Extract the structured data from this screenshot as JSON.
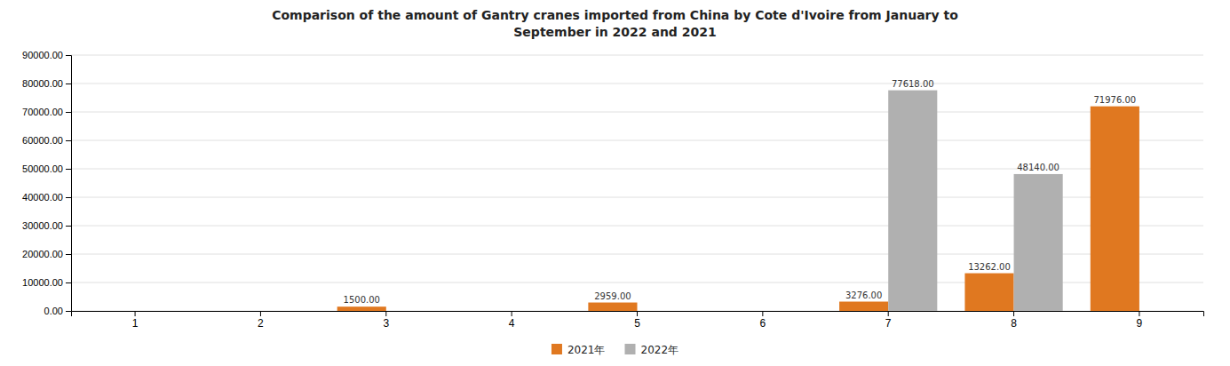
{
  "chart_data": {
    "type": "bar",
    "title": "Comparison of the amount of Gantry cranes imported from China by Cote d'Ivoire from January to\nSeptember in 2022 and 2021",
    "categories": [
      "1",
      "2",
      "3",
      "4",
      "5",
      "6",
      "7",
      "8",
      "9"
    ],
    "series": [
      {
        "name": "2021年",
        "color": "#E07820",
        "values": [
          0,
          0,
          1500.0,
          0,
          2959.0,
          0,
          3276.0,
          13262.0,
          71976.0
        ],
        "value_labels": [
          null,
          null,
          "1500.00",
          null,
          "2959.00",
          null,
          "3276.00",
          "13262.00",
          "71976.00"
        ]
      },
      {
        "name": "2022年",
        "color": "#B0B0B0",
        "values": [
          0,
          0,
          0,
          0,
          0,
          0,
          77618.0,
          48140.0,
          0
        ],
        "value_labels": [
          null,
          null,
          null,
          null,
          null,
          null,
          "77618.00",
          "48140.00",
          null
        ]
      }
    ],
    "ylim": [
      0,
      90000
    ],
    "yticks": [
      {
        "value": 0,
        "label": "0.00"
      },
      {
        "value": 10000,
        "label": "10000.00"
      },
      {
        "value": 20000,
        "label": "20000.00"
      },
      {
        "value": 30000,
        "label": "30000.00"
      },
      {
        "value": 40000,
        "label": "40000.00"
      },
      {
        "value": 50000,
        "label": "50000.00"
      },
      {
        "value": 60000,
        "label": "60000.00"
      },
      {
        "value": 70000,
        "label": "70000.00"
      },
      {
        "value": 80000,
        "label": "80000.00"
      },
      {
        "value": 90000,
        "label": "90000.00"
      }
    ],
    "grid": true,
    "legend": "bottom",
    "data_labels": true
  }
}
